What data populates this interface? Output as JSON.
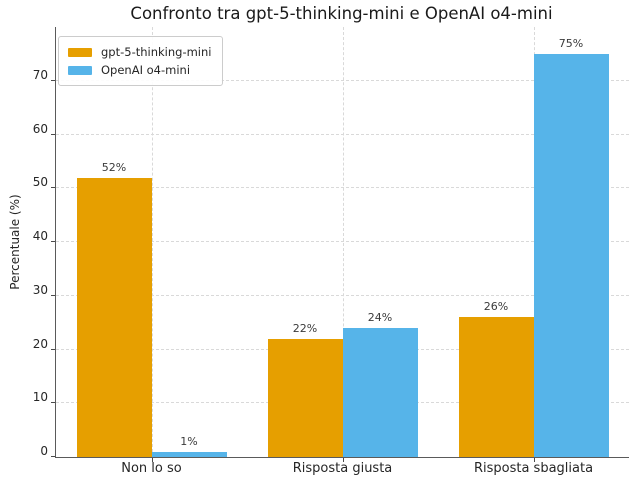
{
  "chart_data": {
    "type": "bar",
    "title": "Confronto tra gpt-5-thinking-mini e OpenAI o4-mini",
    "categories": [
      "Non lo so",
      "Risposta giusta",
      "Risposta sbagliata"
    ],
    "series": [
      {
        "name": "gpt-5-thinking-mini",
        "color": "#E69F00",
        "values": [
          52,
          22,
          26
        ],
        "data_labels": [
          "52%",
          "22%",
          "26%"
        ]
      },
      {
        "name": "OpenAI o4-mini",
        "color": "#56B4E9",
        "values": [
          1,
          24,
          75
        ],
        "data_labels": [
          "1%",
          "24%",
          "75%"
        ]
      }
    ],
    "xlabel": "",
    "ylabel": "Percentuale (%)",
    "ylim": [
      0,
      80
    ],
    "yticks": [
      0,
      10,
      20,
      30,
      40,
      50,
      60,
      70
    ],
    "ytick_labels": [
      "0",
      "10",
      "20",
      "30",
      "40",
      "50",
      "60",
      "70"
    ],
    "grid": true,
    "grid_style": "dashed",
    "legend_position": "upper-left",
    "value_label_suffix": "%"
  },
  "style_colors": {
    "bar_orange": "#E69F00",
    "bar_blue": "#56B4E9",
    "grid": "#d9d9d9",
    "spine": "#5a5a5a",
    "text": "#262626"
  }
}
